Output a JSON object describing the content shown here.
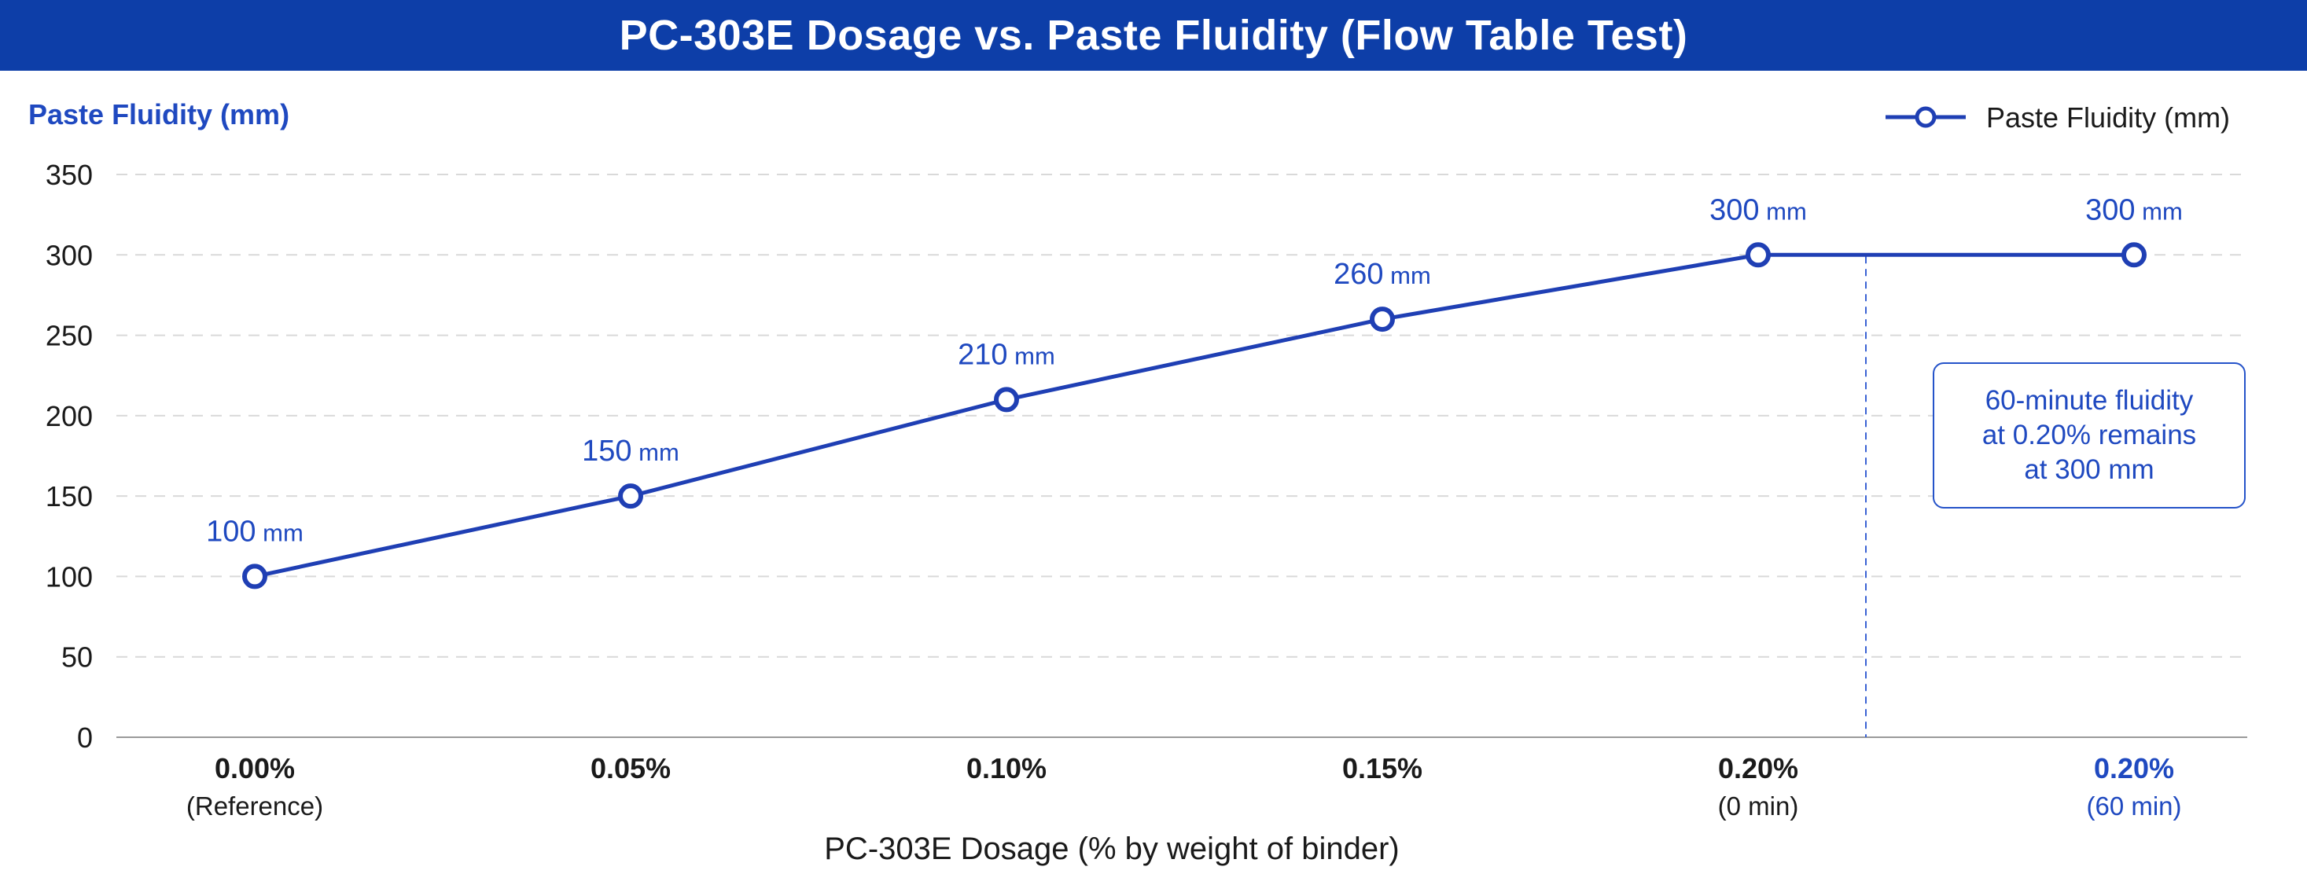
{
  "chart_data": {
    "type": "line",
    "title": "PC-303E Dosage vs. Paste Fluidity (Flow Table Test)",
    "xlabel": "PC-303E Dosage (% by weight of binder)",
    "ylabel": "Paste Fluidity (mm)",
    "ylim": [
      0,
      350
    ],
    "yticks": [
      "0",
      "50",
      "100",
      "150",
      "200",
      "250",
      "300",
      "350"
    ],
    "grid": true,
    "legend_position": "top-right",
    "categories": [
      {
        "label": "0.00%",
        "sublabel": "(Reference)",
        "highlight": false
      },
      {
        "label": "0.05%",
        "sublabel": "",
        "highlight": false
      },
      {
        "label": "0.10%",
        "sublabel": "",
        "highlight": false
      },
      {
        "label": "0.15%",
        "sublabel": "",
        "highlight": false
      },
      {
        "label": "0.20%",
        "sublabel": "(0 min)",
        "highlight": false
      },
      {
        "label": "0.20%",
        "sublabel": "(60 min)",
        "highlight": true
      }
    ],
    "series": [
      {
        "name": "Paste Fluidity (mm)",
        "values": [
          100,
          150,
          210,
          260,
          300,
          300
        ],
        "data_labels": [
          "100",
          "150",
          "210",
          "260",
          "300",
          "300"
        ],
        "data_label_unit": "mm",
        "color": "#1f3fb4"
      }
    ],
    "annotation": "60-minute fluidity\nat 0.20% remains\nat 300 mm",
    "colors": {
      "title_bar": "#0d3ea8",
      "line": "#1f3fb4",
      "accent_text": "#1f49c0",
      "grid": "#d9d9d9",
      "axis": "#9a9a9a"
    }
  }
}
